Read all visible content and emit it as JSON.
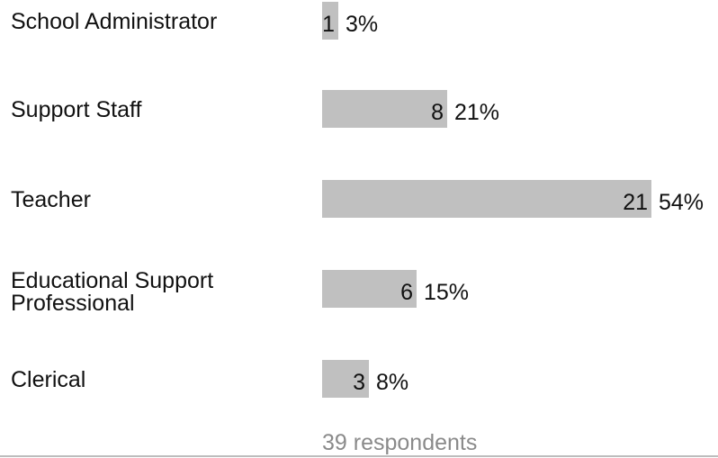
{
  "chart_data": {
    "type": "bar",
    "orientation": "horizontal",
    "categories": [
      "School Administrator",
      "Support Staff",
      "Teacher",
      "Educational Support Professional",
      "Clerical"
    ],
    "values": [
      1,
      8,
      21,
      6,
      3
    ],
    "percentages": [
      "3%",
      "21%",
      "54%",
      "15%",
      "8%"
    ],
    "bar_color": "#c0c0c0",
    "xlim": [
      0,
      21
    ]
  },
  "footer": {
    "respondents": "39 respondents"
  }
}
